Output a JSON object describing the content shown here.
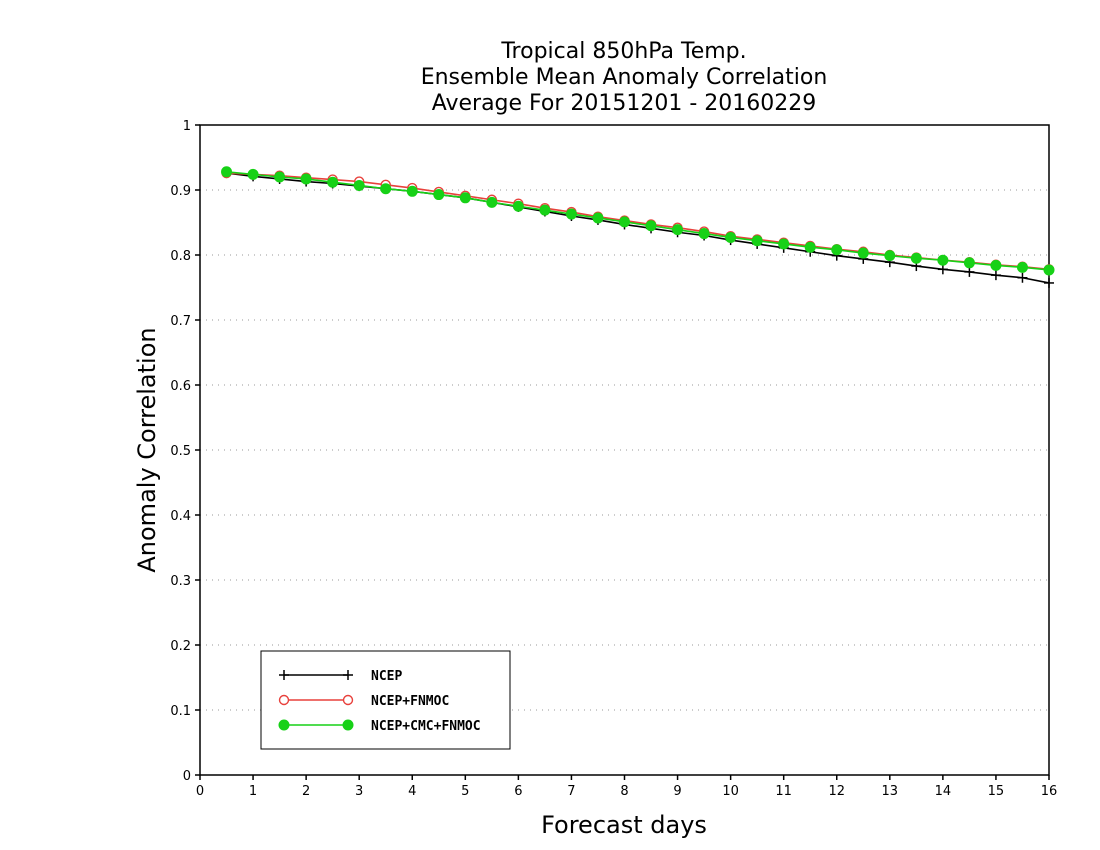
{
  "chart_data": {
    "type": "line",
    "title_lines": [
      "Tropical 850hPa Temp.",
      "Ensemble Mean Anomaly Correlation",
      "Average For 20151201 - 20160229"
    ],
    "xlabel": "Forecast days",
    "ylabel": "Anomaly Correlation",
    "xlim": [
      0,
      16
    ],
    "ylim": [
      0,
      1
    ],
    "x_ticks": [
      0,
      1,
      2,
      3,
      4,
      5,
      6,
      7,
      8,
      9,
      10,
      11,
      12,
      13,
      14,
      15,
      16
    ],
    "y_ticks": [
      0,
      0.1,
      0.2,
      0.3,
      0.4,
      0.5,
      0.6,
      0.7,
      0.8,
      0.9,
      1
    ],
    "y_tick_labels": [
      "0",
      "0.1",
      "0.2",
      "0.3",
      "0.4",
      "0.5",
      "0.6",
      "0.7",
      "0.8",
      "0.9",
      "1"
    ],
    "grid": "horizontal dotted",
    "legend_position": "bottom-left",
    "x": [
      0.5,
      1,
      1.5,
      2,
      2.5,
      3,
      3.5,
      4,
      4.5,
      5,
      5.5,
      6,
      6.5,
      7,
      7.5,
      8,
      8.5,
      9,
      9.5,
      10,
      10.5,
      11,
      11.5,
      12,
      12.5,
      13,
      13.5,
      14,
      14.5,
      15,
      15.5,
      16
    ],
    "series": [
      {
        "name": "NCEP",
        "color": "#000000",
        "marker": "plus",
        "values": [
          0.926,
          0.921,
          0.917,
          0.913,
          0.91,
          0.906,
          0.902,
          0.898,
          0.893,
          0.888,
          0.881,
          0.874,
          0.867,
          0.86,
          0.854,
          0.847,
          0.841,
          0.835,
          0.83,
          0.823,
          0.817,
          0.811,
          0.805,
          0.799,
          0.794,
          0.789,
          0.783,
          0.778,
          0.774,
          0.769,
          0.765,
          0.757
        ]
      },
      {
        "name": "NCEP+FNMOC",
        "color": "#e8413c",
        "marker": "open-circle",
        "values": [
          0.926,
          0.924,
          0.922,
          0.919,
          0.916,
          0.913,
          0.908,
          0.903,
          0.897,
          0.891,
          0.885,
          0.879,
          0.872,
          0.866,
          0.859,
          0.853,
          0.847,
          0.842,
          0.836,
          0.829,
          0.824,
          0.819,
          0.814,
          0.809,
          0.805,
          0.8,
          0.796,
          0.792,
          0.789,
          0.785,
          0.782,
          0.778
        ]
      },
      {
        "name": "NCEP+CMC+FNMOC",
        "color": "#17d117",
        "marker": "filled-circle",
        "values": [
          0.928,
          0.924,
          0.92,
          0.917,
          0.912,
          0.907,
          0.902,
          0.898,
          0.893,
          0.888,
          0.881,
          0.875,
          0.869,
          0.863,
          0.857,
          0.851,
          0.845,
          0.839,
          0.833,
          0.827,
          0.822,
          0.817,
          0.812,
          0.808,
          0.803,
          0.799,
          0.795,
          0.792,
          0.788,
          0.784,
          0.781,
          0.777
        ]
      }
    ]
  }
}
